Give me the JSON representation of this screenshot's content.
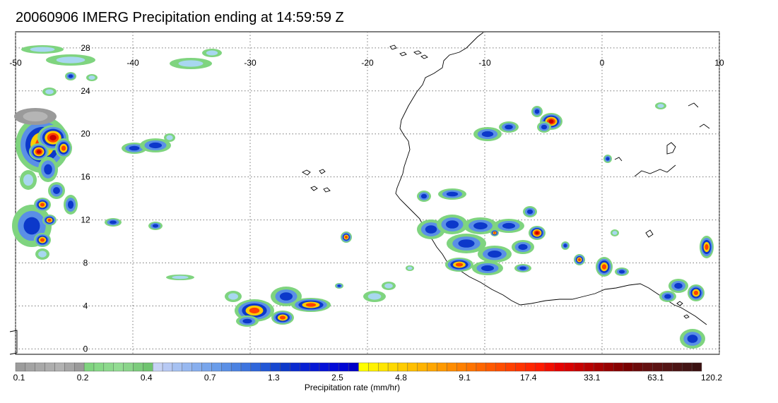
{
  "title": "20060906 IMERG Precipitation ending at 14:59:59 Z",
  "map": {
    "lon_ticks": [
      "-50",
      "-40",
      "-30",
      "-20",
      "-10",
      "0",
      "10"
    ],
    "lat_ticks": [
      "28",
      "24",
      "20",
      "16",
      "12",
      "8",
      "4",
      "0"
    ],
    "lon_range": [
      -50,
      10
    ],
    "lat_range": [
      -0.5,
      29.5
    ],
    "grid": true,
    "grid_style": "dotted"
  },
  "colorbar": {
    "label": "Precipitation rate (mm/hr)",
    "tick_labels": [
      "0.1",
      "0.2",
      "0.4",
      "0.7",
      "1.3",
      "2.5",
      "4.8",
      "9.1",
      "17.4",
      "33.1",
      "63.1",
      "120.2"
    ],
    "colors": [
      "#9c9c9c",
      "#a3a3a3",
      "#a8a8a8",
      "#adadad",
      "#b1b1b1",
      "#a6a6a6",
      "#9a9a9a",
      "#7fd47f",
      "#86d886",
      "#8cd98c",
      "#92dc92",
      "#8ad58a",
      "#7ccc7c",
      "#6fc46f",
      "#c7d3f5",
      "#b7c9f4",
      "#a6c1f2",
      "#97b8f0",
      "#87aeee",
      "#78a5ec",
      "#699cea",
      "#5a8fe6",
      "#4b82e2",
      "#3d74df",
      "#2f66db",
      "#2257d6",
      "#1747d0",
      "#0c38ca",
      "#0a2ad0",
      "#0820d4",
      "#0618d6",
      "#0410d8",
      "#020ad8",
      "#0005d4",
      "#0000c8",
      "#ffff00",
      "#fff200",
      "#ffe600",
      "#ffd900",
      "#ffcc00",
      "#ffbf00",
      "#ffb300",
      "#ffa600",
      "#ff9900",
      "#ff8c00",
      "#ff8000",
      "#ff7300",
      "#ff6600",
      "#ff5900",
      "#ff4d00",
      "#ff4000",
      "#ff3300",
      "#ff2600",
      "#ff1a00",
      "#f20d00",
      "#e60000",
      "#d90000",
      "#c80000",
      "#b80000",
      "#a80000",
      "#980000",
      "#880000",
      "#780000",
      "#6c0a0a",
      "#641010",
      "#5c1212",
      "#541414",
      "#4c1414",
      "#441414",
      "#3c1212"
    ]
  }
}
